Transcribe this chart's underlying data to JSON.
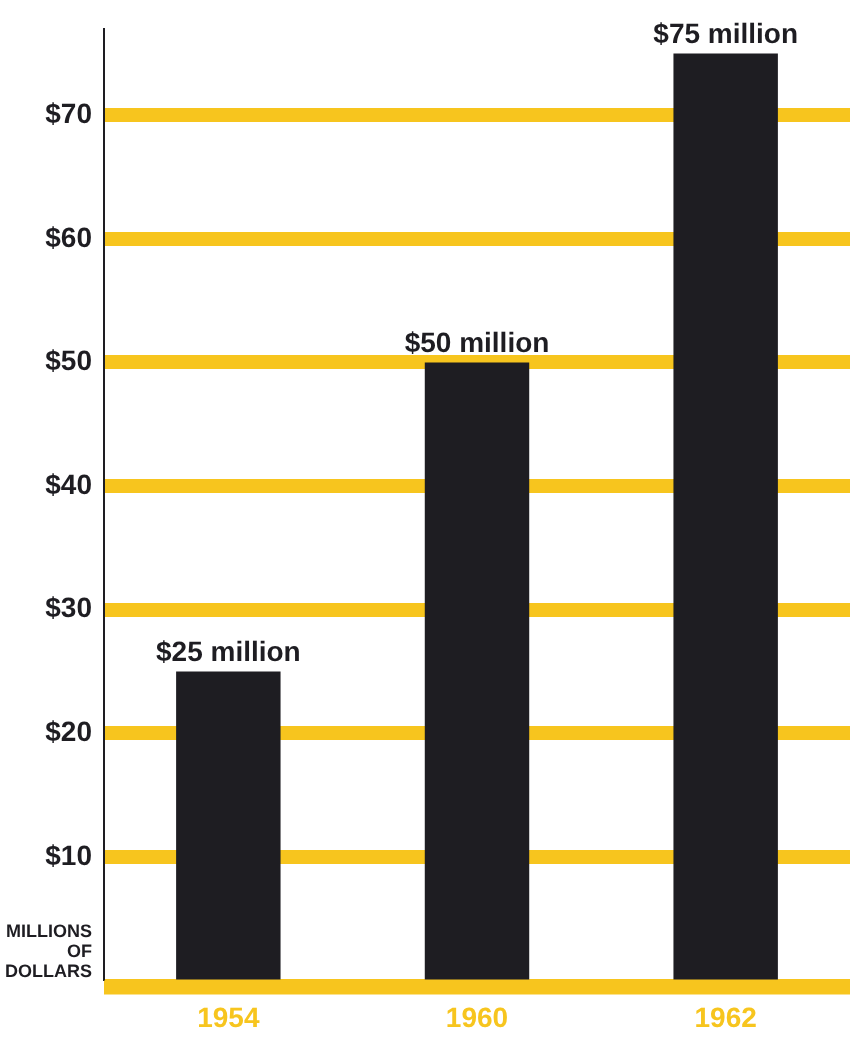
{
  "chart_data": {
    "type": "bar",
    "ylabel": "MILLIONS OF DOLLARS",
    "categories": [
      "1954",
      "1960",
      "1962"
    ],
    "values": [
      25,
      50,
      75
    ],
    "value_labels": [
      "$25 million",
      "$50 million",
      "$75 million"
    ],
    "color": "#1e1d22",
    "ylim": [
      0,
      77
    ],
    "yticks": [
      {
        "value": 0,
        "label": null
      },
      {
        "value": 10,
        "label": "$10"
      },
      {
        "value": 20,
        "label": "$20"
      },
      {
        "value": 30,
        "label": "$30"
      },
      {
        "value": 40,
        "label": "$40"
      },
      {
        "value": 50,
        "label": "$50"
      },
      {
        "value": 60,
        "label": "$60"
      },
      {
        "value": 70,
        "label": "$70"
      }
    ],
    "grid": "y",
    "legend": false
  }
}
